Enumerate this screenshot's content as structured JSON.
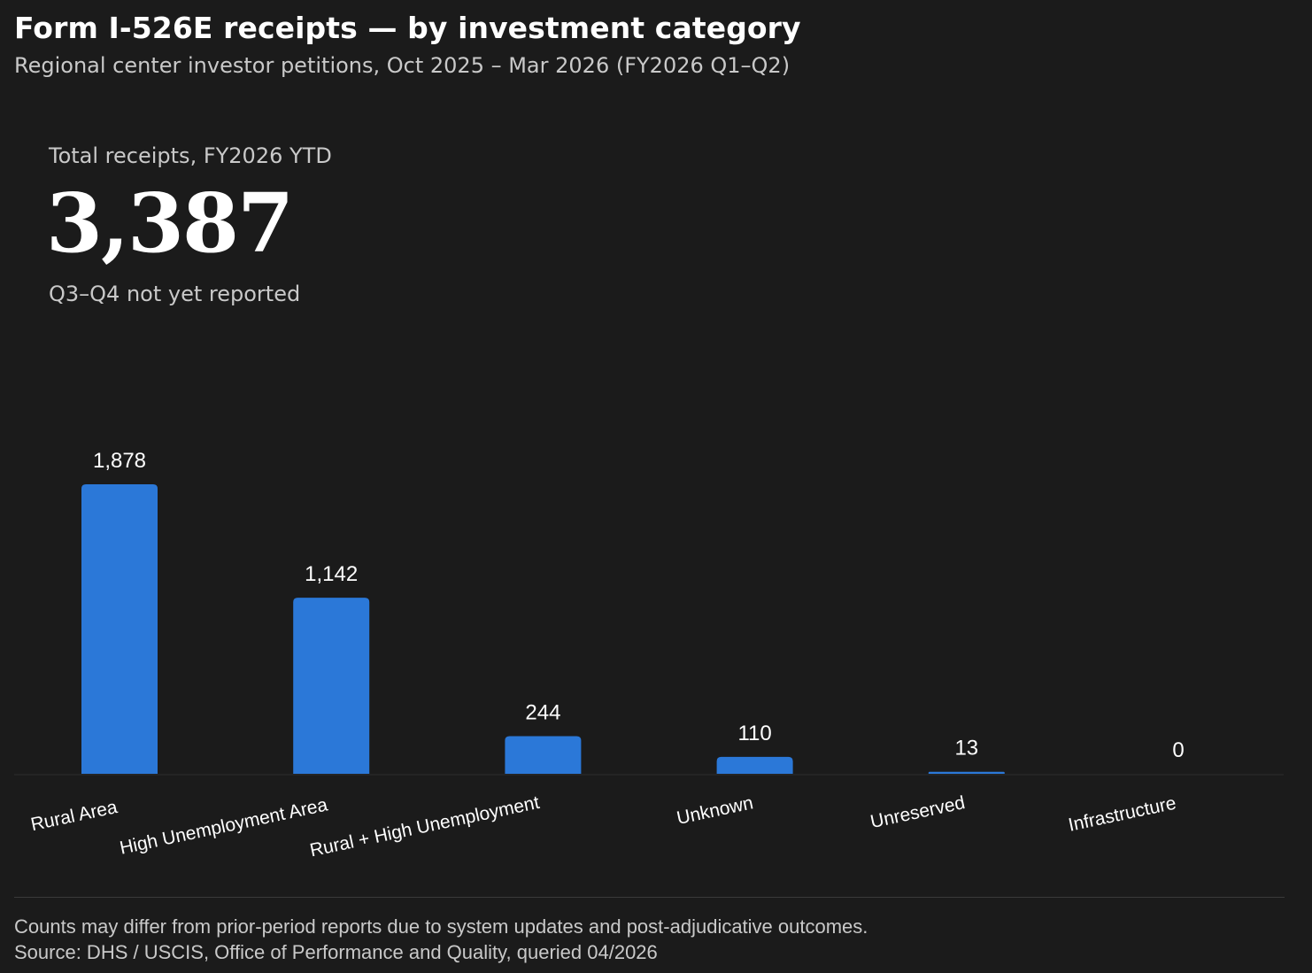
{
  "header": {
    "title": "Form I-526E receipts — by investment category",
    "subtitle": "Regional center investor petitions, Oct 2025 – Mar 2026 (FY2026 Q1–Q2)"
  },
  "kpi": {
    "label": "Total receipts, FY2026 YTD",
    "value": "3,387",
    "note": "Q3–Q4 not yet reported"
  },
  "footer": {
    "note": "Counts may differ from prior-period reports due to system updates and post-adjudicative outcomes.",
    "source": "Source: DHS / USCIS, Office of Performance and Quality, queried 04/2026"
  },
  "colors": {
    "background": "#1b1b1b",
    "bar": "#2b78d8",
    "text": "#ffffff",
    "muted": "#c9c9c9"
  },
  "chart_data": {
    "type": "bar",
    "categories": [
      "Rural Area",
      "High Unemployment Area",
      "Rural + High Unemployment",
      "Unknown",
      "Unreserved",
      "Infrastructure"
    ],
    "values": [
      1878,
      1142,
      244,
      110,
      13,
      0
    ],
    "value_labels": [
      "1,878",
      "1,142",
      "244",
      "110",
      "13",
      "0"
    ],
    "title": "",
    "xlabel": "",
    "ylabel": "",
    "ylim": [
      0,
      1878
    ],
    "grid": false,
    "legend": "none"
  }
}
